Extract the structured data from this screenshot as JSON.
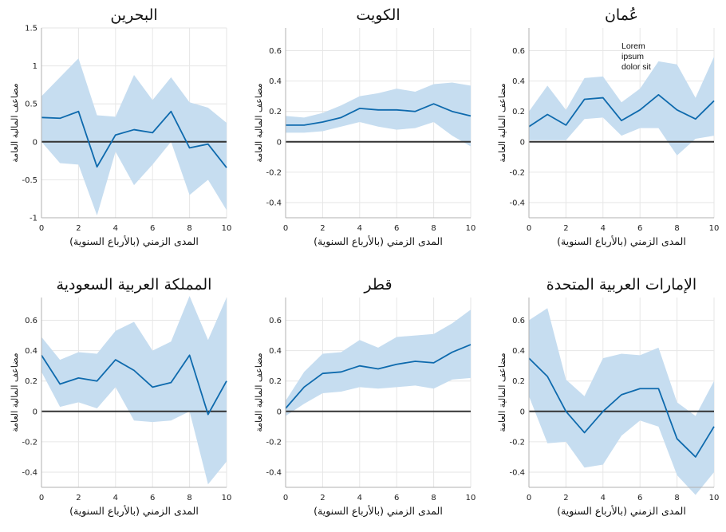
{
  "colors": {
    "band": "#c6ddf0",
    "line": "#0e6aad",
    "zero": "#333333",
    "grid": "#e6e6e6",
    "axis": "#b0b0b0"
  },
  "chart_data": [
    {
      "type": "line",
      "title": "البحرين",
      "xlabel": "المدى الزمني (بالأرباع السنوية)",
      "ylabel": "مضاعف المالية العامة",
      "xlim": [
        0,
        10
      ],
      "ylim": [
        -1,
        1.5
      ],
      "xticks": [
        0,
        2,
        4,
        6,
        8,
        10
      ],
      "yticks": [
        -1,
        -0.5,
        0,
        0.5,
        1,
        1.5
      ],
      "ytick_labels": [
        "-1",
        "-0.5",
        "0",
        "0.5",
        "1",
        "1.5"
      ],
      "x": [
        0,
        1,
        2,
        3,
        4,
        5,
        6,
        7,
        8,
        9,
        10
      ],
      "series": [
        {
          "name": "estimate",
          "values": [
            0.32,
            0.31,
            0.4,
            -0.33,
            0.09,
            0.16,
            0.12,
            0.4,
            -0.08,
            -0.03,
            -0.34
          ]
        },
        {
          "name": "upper",
          "values": [
            0.6,
            0.85,
            1.1,
            0.35,
            0.33,
            0.88,
            0.55,
            0.85,
            0.52,
            0.45,
            0.25
          ]
        },
        {
          "name": "lower",
          "values": [
            0.0,
            -0.28,
            -0.3,
            -0.97,
            -0.13,
            -0.57,
            -0.3,
            0.0,
            -0.7,
            -0.5,
            -0.9
          ]
        }
      ]
    },
    {
      "type": "line",
      "title": "الكويت",
      "xlabel": "المدى الزمني (بالأرباع السنوية)",
      "ylabel": "مضاعف المالية العامة",
      "xlim": [
        0,
        10
      ],
      "ylim": [
        -0.5,
        0.75
      ],
      "xticks": [
        0,
        2,
        4,
        6,
        8,
        10
      ],
      "yticks": [
        -0.4,
        -0.2,
        0,
        0.2,
        0.4,
        0.6
      ],
      "ytick_labels": [
        "-0.4",
        "-0.2",
        "0",
        "0.2",
        "0.4",
        "0.6"
      ],
      "x": [
        0,
        1,
        2,
        3,
        4,
        5,
        6,
        7,
        8,
        9,
        10
      ],
      "series": [
        {
          "name": "estimate",
          "values": [
            0.11,
            0.11,
            0.13,
            0.16,
            0.22,
            0.21,
            0.21,
            0.2,
            0.25,
            0.2,
            0.17
          ]
        },
        {
          "name": "upper",
          "values": [
            0.17,
            0.16,
            0.19,
            0.24,
            0.3,
            0.32,
            0.35,
            0.33,
            0.38,
            0.39,
            0.37
          ]
        },
        {
          "name": "lower",
          "values": [
            0.06,
            0.06,
            0.07,
            0.1,
            0.13,
            0.1,
            0.08,
            0.09,
            0.13,
            0.04,
            -0.03
          ]
        }
      ]
    },
    {
      "type": "line",
      "title": "عُمان",
      "xlabel": "المدى الزمني (بالأرباع السنوية)",
      "ylabel": "مضاعف المالية العامة",
      "xlim": [
        0,
        10
      ],
      "ylim": [
        -0.5,
        0.75
      ],
      "xticks": [
        0,
        2,
        4,
        6,
        8,
        10
      ],
      "yticks": [
        -0.4,
        -0.2,
        0,
        0.2,
        0.4,
        0.6
      ],
      "ytick_labels": [
        "-0.4",
        "-0.2",
        "0",
        "0.2",
        "0.4",
        "0.6"
      ],
      "x": [
        0,
        1,
        2,
        3,
        4,
        5,
        6,
        7,
        8,
        9,
        10
      ],
      "series": [
        {
          "name": "estimate",
          "values": [
            0.1,
            0.18,
            0.11,
            0.28,
            0.29,
            0.14,
            0.21,
            0.31,
            0.21,
            0.15,
            0.27
          ]
        },
        {
          "name": "upper",
          "values": [
            0.2,
            0.37,
            0.21,
            0.42,
            0.43,
            0.26,
            0.35,
            0.53,
            0.51,
            0.29,
            0.56
          ]
        },
        {
          "name": "lower",
          "values": [
            0.01,
            0.01,
            0.01,
            0.15,
            0.16,
            0.04,
            0.09,
            0.09,
            -0.09,
            0.02,
            0.04
          ]
        }
      ],
      "annotation": "Lorem ipsum dolor sit"
    },
    {
      "type": "line",
      "title": "المملكة العربية السعودية",
      "xlabel": "المدى الزمني (بالأرباع السنوية)",
      "ylabel": "مضاعف المالية العامة",
      "xlim": [
        0,
        10
      ],
      "ylim": [
        -0.5,
        0.75
      ],
      "xticks": [
        0,
        2,
        4,
        6,
        8,
        10
      ],
      "yticks": [
        -0.4,
        -0.2,
        0,
        0.2,
        0.4,
        0.6
      ],
      "ytick_labels": [
        "-0.4",
        "-0.2",
        "0",
        "0.2",
        "0.4",
        "0.6"
      ],
      "x": [
        0,
        1,
        2,
        3,
        4,
        5,
        6,
        7,
        8,
        9,
        10
      ],
      "series": [
        {
          "name": "estimate",
          "values": [
            0.37,
            0.18,
            0.22,
            0.2,
            0.34,
            0.27,
            0.16,
            0.19,
            0.37,
            -0.02,
            0.2
          ]
        },
        {
          "name": "upper",
          "values": [
            0.49,
            0.34,
            0.39,
            0.38,
            0.53,
            0.59,
            0.4,
            0.46,
            0.76,
            0.47,
            0.75
          ]
        },
        {
          "name": "lower",
          "values": [
            0.26,
            0.03,
            0.06,
            0.02,
            0.16,
            -0.06,
            -0.07,
            -0.06,
            0.0,
            -0.48,
            -0.33
          ]
        }
      ]
    },
    {
      "type": "line",
      "title": "قطر",
      "xlabel": "المدى الزمني (بالأرباع السنوية)",
      "ylabel": "مضاعف المالية العامة",
      "xlim": [
        0,
        10
      ],
      "ylim": [
        -0.5,
        0.75
      ],
      "xticks": [
        0,
        2,
        4,
        6,
        8,
        10
      ],
      "yticks": [
        -0.4,
        -0.2,
        0,
        0.2,
        0.4,
        0.6
      ],
      "ytick_labels": [
        "-0.4",
        "-0.2",
        "0",
        "0.2",
        "0.4",
        "0.6"
      ],
      "x": [
        0,
        1,
        2,
        3,
        4,
        5,
        6,
        7,
        8,
        9,
        10
      ],
      "series": [
        {
          "name": "estimate",
          "values": [
            0.02,
            0.16,
            0.25,
            0.26,
            0.3,
            0.28,
            0.31,
            0.33,
            0.32,
            0.39,
            0.44
          ]
        },
        {
          "name": "upper",
          "values": [
            0.07,
            0.26,
            0.38,
            0.39,
            0.47,
            0.42,
            0.49,
            0.5,
            0.51,
            0.58,
            0.67
          ]
        },
        {
          "name": "lower",
          "values": [
            -0.03,
            0.05,
            0.12,
            0.13,
            0.16,
            0.15,
            0.16,
            0.17,
            0.15,
            0.21,
            0.22
          ]
        }
      ]
    },
    {
      "type": "line",
      "title": "الإمارات العربية المتحدة",
      "xlabel": "المدى الزمني (بالأرباع السنوية)",
      "ylabel": "مضاعف المالية العامة",
      "xlim": [
        0,
        10
      ],
      "ylim": [
        -0.5,
        0.75
      ],
      "xticks": [
        0,
        2,
        4,
        6,
        8,
        10
      ],
      "yticks": [
        -0.4,
        -0.2,
        0,
        0.2,
        0.4,
        0.6
      ],
      "ytick_labels": [
        "-0.4",
        "-0.2",
        "0",
        "0.2",
        "0.4",
        "0.6"
      ],
      "x": [
        0,
        1,
        2,
        3,
        4,
        5,
        6,
        7,
        8,
        9,
        10
      ],
      "series": [
        {
          "name": "estimate",
          "values": [
            0.35,
            0.23,
            0.0,
            -0.14,
            0.0,
            0.11,
            0.15,
            0.15,
            -0.18,
            -0.3,
            -0.1
          ]
        },
        {
          "name": "upper",
          "values": [
            0.6,
            0.68,
            0.21,
            0.1,
            0.35,
            0.38,
            0.37,
            0.42,
            0.06,
            -0.03,
            0.2
          ]
        },
        {
          "name": "lower",
          "values": [
            0.1,
            -0.21,
            -0.2,
            -0.37,
            -0.35,
            -0.16,
            -0.06,
            -0.1,
            -0.42,
            -0.55,
            -0.4
          ]
        }
      ]
    }
  ]
}
